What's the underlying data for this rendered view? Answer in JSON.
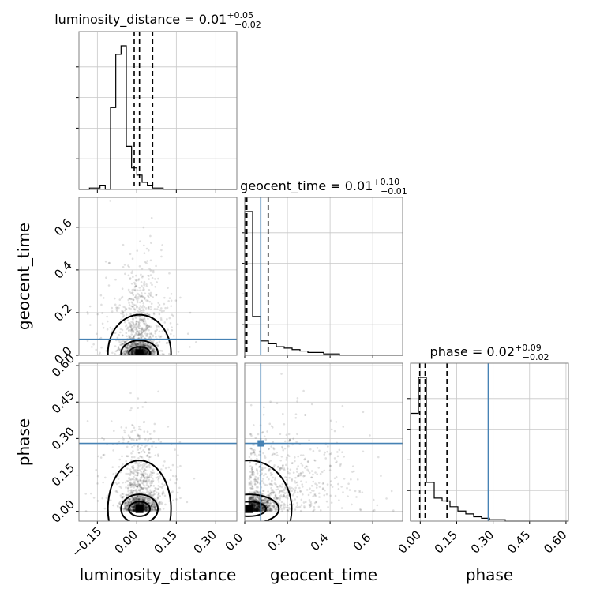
{
  "chart_data": {
    "type": "corner",
    "parameters": [
      "luminosity_distance",
      "geocent_time",
      "phase"
    ],
    "axis_labels": [
      "luminosity_distance",
      "geocent_time",
      "phase"
    ],
    "titles": [
      {
        "name": "luminosity_distance",
        "median": "0.01",
        "plus": "+0.05",
        "minus": "−0.02"
      },
      {
        "name": "geocent_time",
        "median": "0.01",
        "plus": "+0.10",
        "minus": "−0.01"
      },
      {
        "name": "phase",
        "median": "0.02",
        "plus": "+0.09",
        "minus": "−0.02"
      }
    ],
    "ranges": [
      [
        -0.22,
        0.38
      ],
      [
        0.0,
        0.74
      ],
      [
        -0.04,
        0.61
      ]
    ],
    "ticks": [
      {
        "values": [
          -0.15,
          0.0,
          0.15,
          0.3
        ],
        "labels": [
          "−0.15",
          "0.00",
          "0.15",
          "0.30"
        ]
      },
      {
        "values": [
          0.0,
          0.2,
          0.4,
          0.6
        ],
        "labels": [
          "0.0",
          "0.2",
          "0.4",
          "0.6"
        ]
      },
      {
        "values": [
          0.0,
          0.15,
          0.3,
          0.45,
          0.6
        ],
        "labels": [
          "0.00",
          "0.15",
          "0.30",
          "0.45",
          "0.60"
        ]
      }
    ],
    "truths": [
      null,
      0.075,
      0.28
    ],
    "truth_color": "#4682b4",
    "quantiles": [
      [
        -0.01,
        0.01,
        0.06
      ],
      [
        0.002,
        0.01,
        0.11
      ],
      [
        -0.002,
        0.02,
        0.11
      ]
    ],
    "histograms": [
      {
        "edges_from": -0.22,
        "bin_width": 0.02,
        "values": [
          0.0,
          0.0,
          0.01,
          0.01,
          0.03,
          0.0,
          0.57,
          0.94,
          1.0,
          0.3,
          0.15,
          0.1,
          0.05,
          0.03,
          0.01,
          0.01,
          0.0,
          0.0,
          0.0,
          0.0,
          0.0,
          0.0,
          0.0,
          0.0,
          0.0,
          0.0,
          0.0,
          0.0,
          0.0,
          0.0
        ]
      },
      {
        "edges_from": 0.0,
        "bin_width": 0.037,
        "values": [
          1.0,
          0.27,
          0.1,
          0.08,
          0.06,
          0.05,
          0.04,
          0.03,
          0.02,
          0.02,
          0.01,
          0.01,
          0.0,
          0.0,
          0.0,
          0.0,
          0.0,
          0.0,
          0.0,
          0.0
        ]
      },
      {
        "edges_from": -0.04,
        "bin_width": 0.0325,
        "values": [
          0.75,
          1.0,
          0.27,
          0.16,
          0.14,
          0.1,
          0.07,
          0.05,
          0.03,
          0.02,
          0.01,
          0.01,
          0.0,
          0.0,
          0.0,
          0.0,
          0.0,
          0.0,
          0.0,
          0.0
        ]
      }
    ],
    "grid": true,
    "scatter_color": "#000000"
  }
}
